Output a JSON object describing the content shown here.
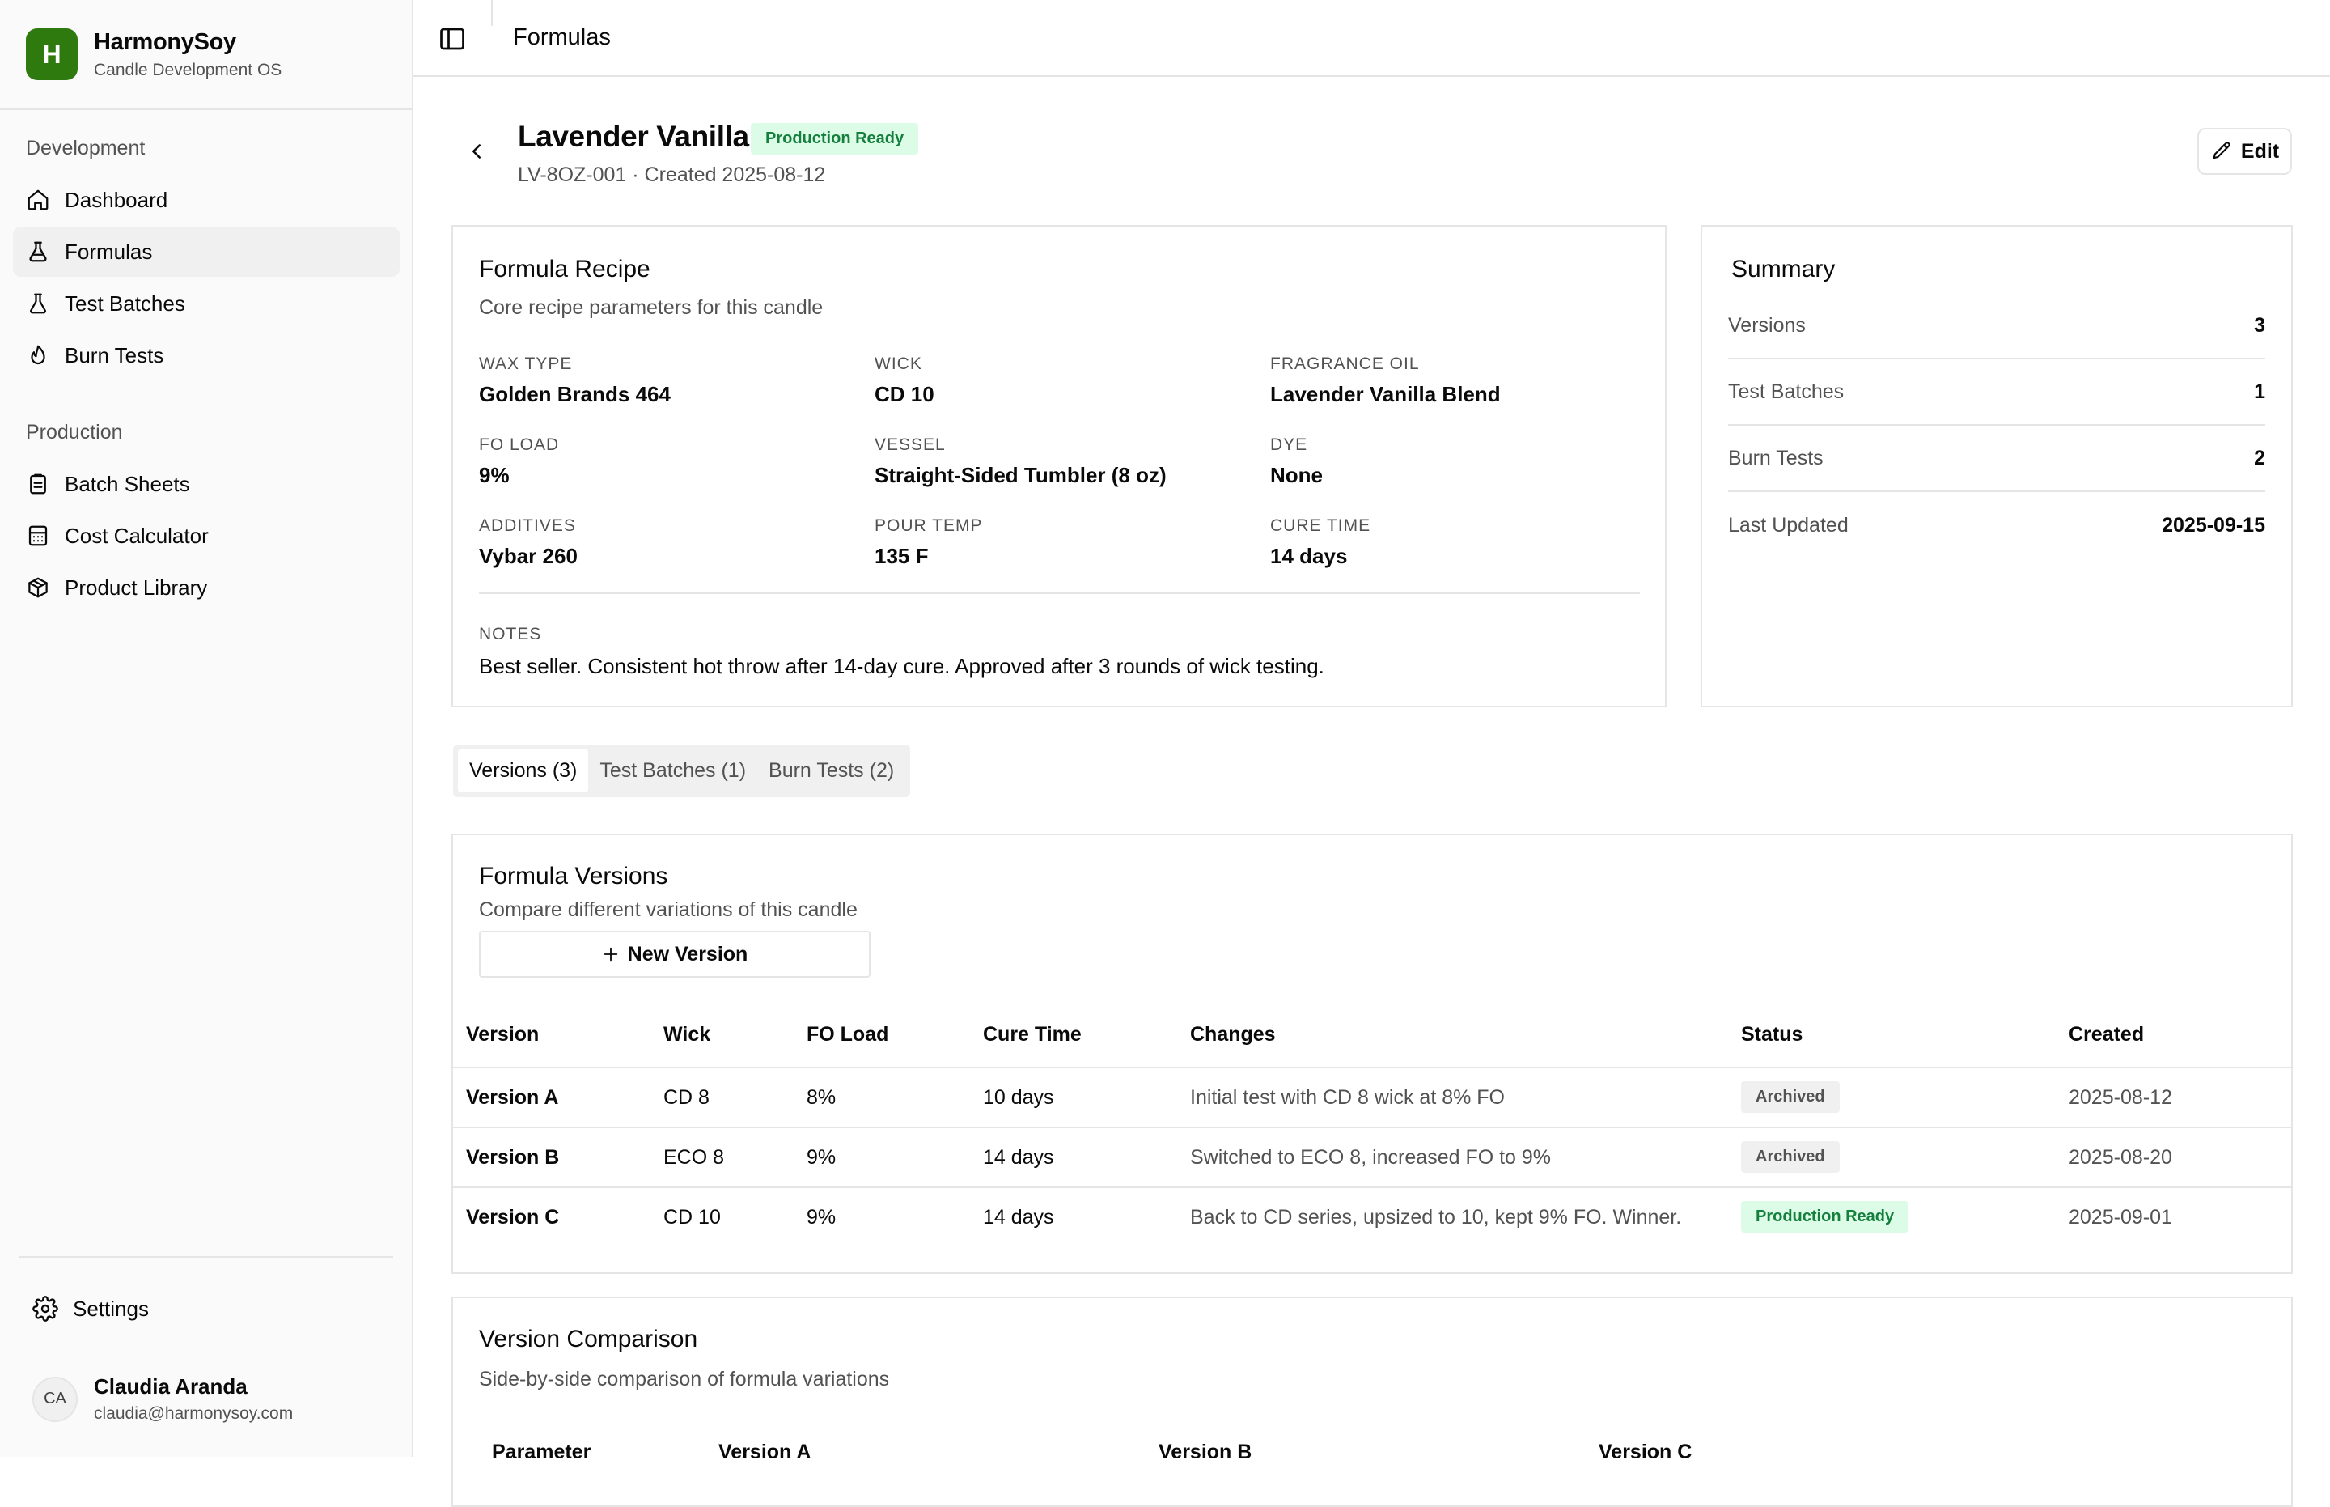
{
  "brand": {
    "initial": "H",
    "name": "HarmonySoy",
    "subtitle": "Candle Development OS",
    "color": "#2f7a0e"
  },
  "sidebar": {
    "development_label": "Development",
    "development_items": [
      {
        "label": "Dashboard",
        "icon": "home-icon"
      },
      {
        "label": "Formulas",
        "icon": "flask-icon",
        "active": true
      },
      {
        "label": "Test Batches",
        "icon": "beaker-icon"
      },
      {
        "label": "Burn Tests",
        "icon": "flame-icon"
      }
    ],
    "production_label": "Production",
    "production_items": [
      {
        "label": "Batch Sheets",
        "icon": "clipboard-icon"
      },
      {
        "label": "Cost Calculator",
        "icon": "calculator-icon"
      },
      {
        "label": "Product Library",
        "icon": "package-icon"
      }
    ],
    "settings_label": "Settings"
  },
  "user": {
    "initials": "CA",
    "name": "Claudia Aranda",
    "email": "claudia@harmonysoy.com"
  },
  "topbar": {
    "breadcrumb": "Formulas"
  },
  "header": {
    "title": "Lavender Vanilla",
    "status": "Production Ready",
    "subtitle": "LV-8OZ-001 · Created 2025-08-12",
    "edit_label": "Edit"
  },
  "recipe": {
    "title": "Formula Recipe",
    "description": "Core recipe parameters for this candle",
    "fields": [
      {
        "label": "Wax Type",
        "value": "Golden Brands 464"
      },
      {
        "label": "Wick",
        "value": "CD 10"
      },
      {
        "label": "Fragrance Oil",
        "value": "Lavender Vanilla Blend"
      },
      {
        "label": "FO Load",
        "value": "9%"
      },
      {
        "label": "Vessel",
        "value": "Straight-Sided Tumbler (8 oz)"
      },
      {
        "label": "Dye",
        "value": "None"
      },
      {
        "label": "Additives",
        "value": "Vybar 260"
      },
      {
        "label": "Pour Temp",
        "value": "135 F"
      },
      {
        "label": "Cure Time",
        "value": "14 days"
      }
    ],
    "notes_label": "Notes",
    "notes": "Best seller. Consistent hot throw after 14-day cure. Approved after 3 rounds of wick testing."
  },
  "summary": {
    "title": "Summary",
    "rows": [
      {
        "label": "Versions",
        "value": "3"
      },
      {
        "label": "Test Batches",
        "value": "1"
      },
      {
        "label": "Burn Tests",
        "value": "2"
      },
      {
        "label": "Last Updated",
        "value": "2025-09-15"
      }
    ]
  },
  "tabs": [
    {
      "label": "Versions (3)",
      "active": true
    },
    {
      "label": "Test Batches (1)"
    },
    {
      "label": "Burn Tests (2)"
    }
  ],
  "versions": {
    "title": "Formula Versions",
    "description": "Compare different variations of this candle",
    "new_button": "New Version",
    "columns": [
      "Version",
      "Wick",
      "FO Load",
      "Cure Time",
      "Changes",
      "Status",
      "Created"
    ],
    "rows": [
      {
        "version": "Version A",
        "wick": "CD 8",
        "fo_load": "8%",
        "cure_time": "10 days",
        "changes": "Initial test with CD 8 wick at 8% FO",
        "status": "Archived",
        "created": "2025-08-12"
      },
      {
        "version": "Version B",
        "wick": "ECO 8",
        "fo_load": "9%",
        "cure_time": "14 days",
        "changes": "Switched to ECO 8, increased FO to 9%",
        "status": "Archived",
        "created": "2025-08-20"
      },
      {
        "version": "Version C",
        "wick": "CD 10",
        "fo_load": "9%",
        "cure_time": "14 days",
        "changes": "Back to CD series, upsized to 10, kept 9% FO. Winner.",
        "status": "Production Ready",
        "created": "2025-09-01"
      }
    ]
  },
  "comparison": {
    "title": "Version Comparison",
    "description": "Side-by-side comparison of formula variations",
    "columns": [
      "Parameter",
      "Version A",
      "Version B",
      "Version C"
    ]
  }
}
